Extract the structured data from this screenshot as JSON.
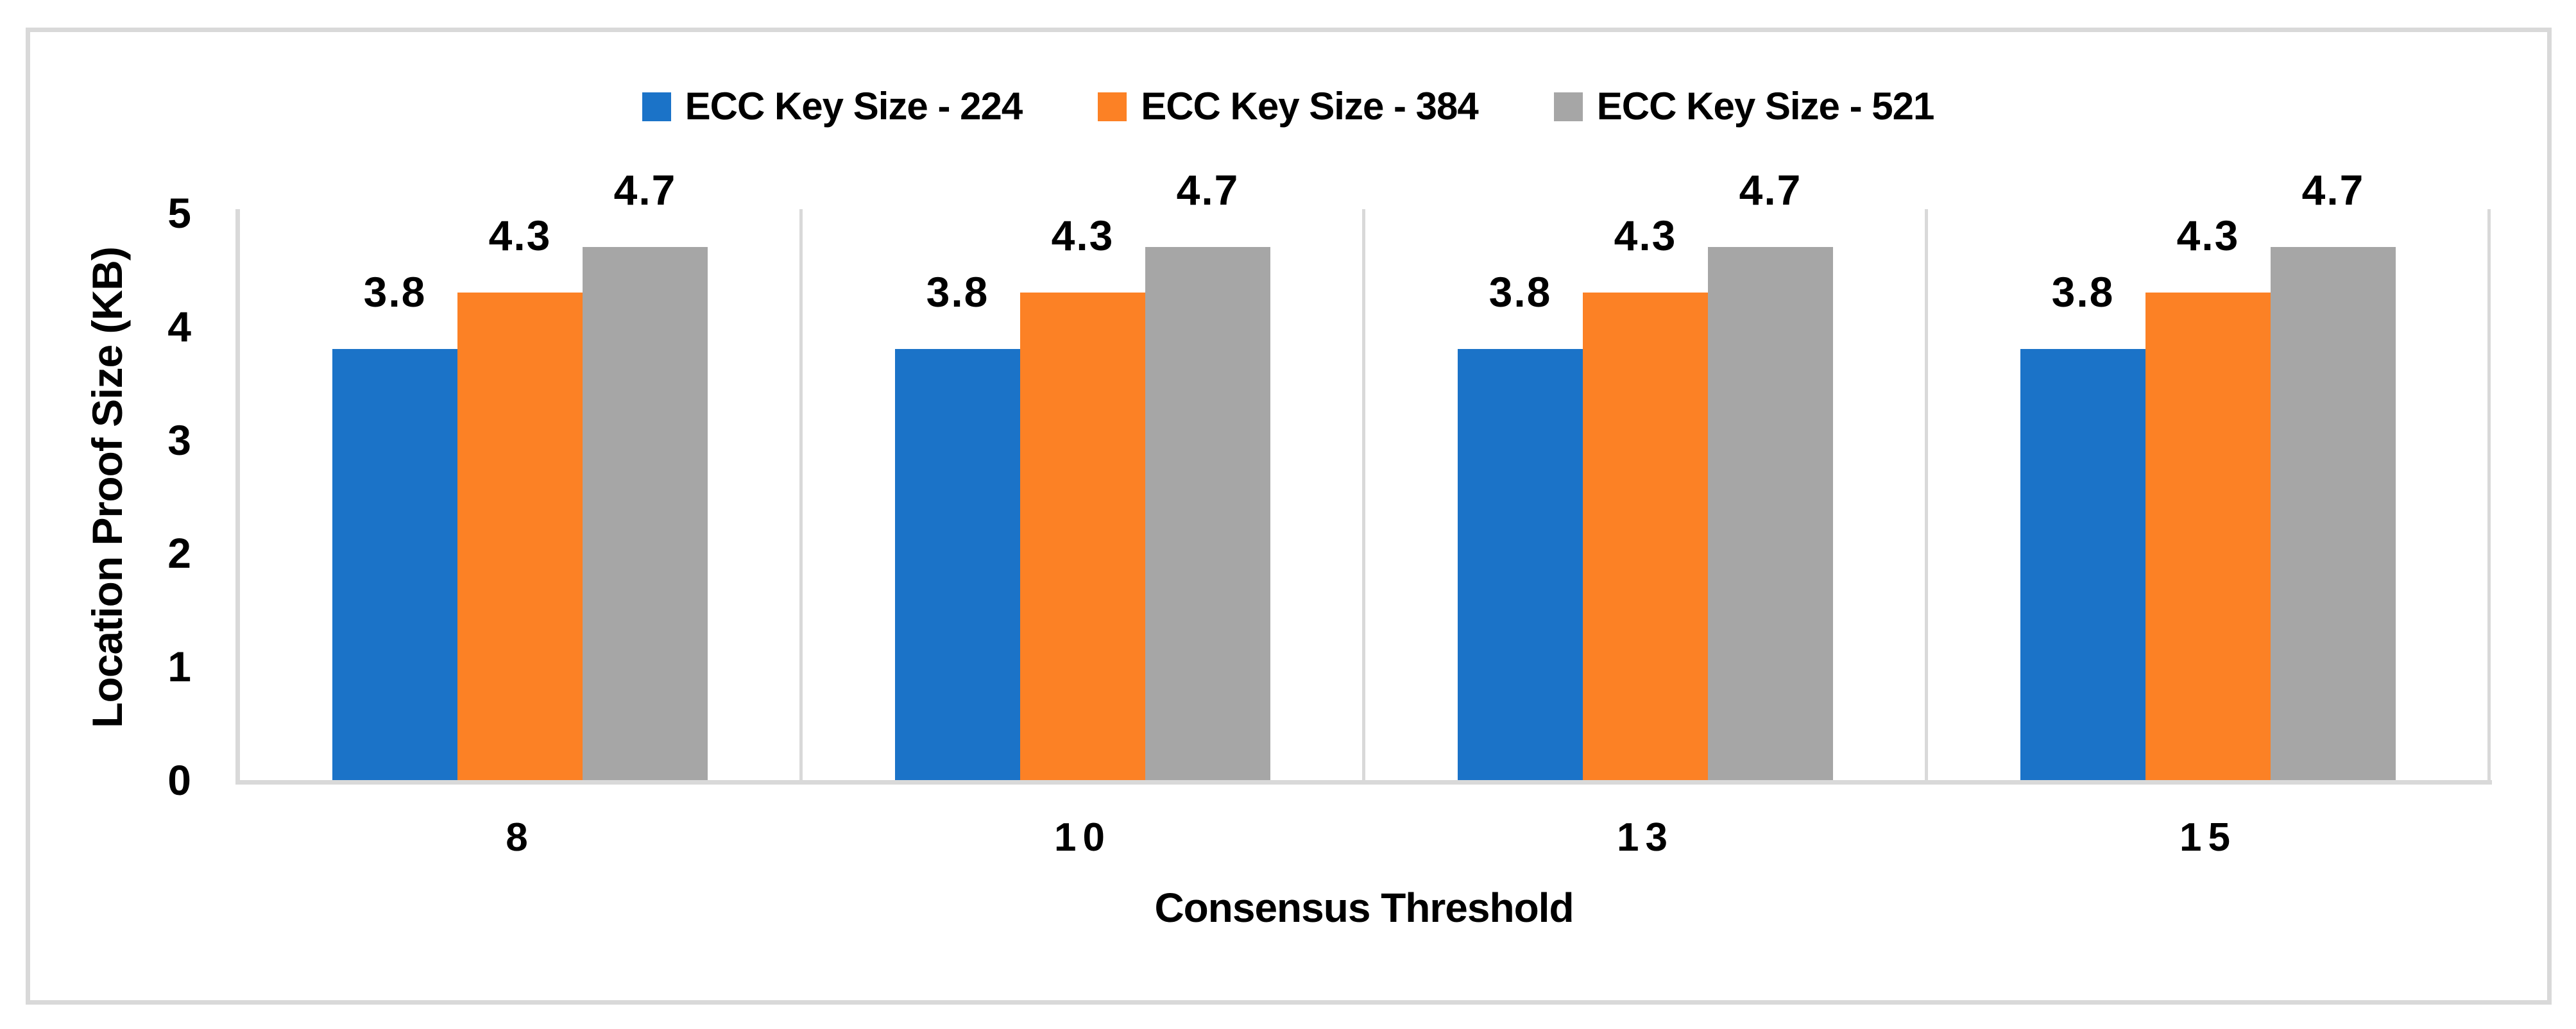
{
  "chart_data": {
    "type": "bar",
    "title": "",
    "categories": [
      "8",
      "10",
      "13",
      "15"
    ],
    "series": [
      {
        "name": "ECC Key Size - 224",
        "color": "#1B73C8",
        "values": [
          3.8,
          3.8,
          3.8,
          3.8
        ]
      },
      {
        "name": "ECC Key Size - 384",
        "color": "#FC8125",
        "values": [
          4.3,
          4.3,
          4.3,
          4.3
        ]
      },
      {
        "name": "ECC Key Size - 521",
        "color": "#A6A6A6",
        "values": [
          4.7,
          4.7,
          4.7,
          4.7
        ]
      }
    ],
    "xlabel": "Consensus Threshold",
    "ylabel": "Location Proof Size (KB)",
    "ylim": [
      0,
      5
    ],
    "yticks": [
      0,
      1,
      2,
      3,
      4,
      5
    ],
    "data_labels_shown": true,
    "legend_position": "top-center",
    "grid": "vertical category separators only",
    "axis_color": "#D9D9D9",
    "text_color": "#000000",
    "background_color": "#FFFFFF"
  }
}
